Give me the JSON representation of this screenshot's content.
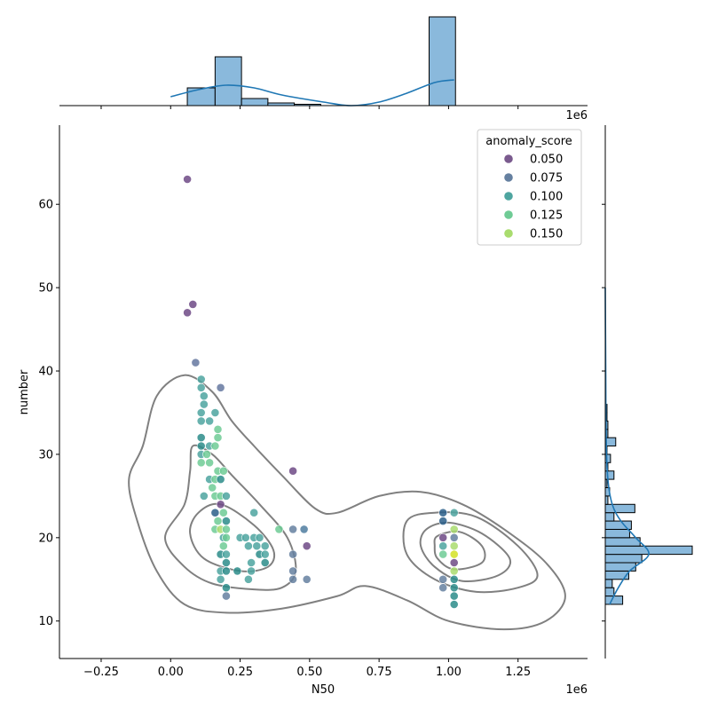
{
  "chart_data": {
    "type": "scatter",
    "subtype": "jointplot with KDE contours and marginal histograms",
    "xlabel": "N50",
    "ylabel": "number",
    "x_offset_label": "1e6",
    "top_offset_label": "1e6",
    "xlim": [
      -0.4,
      1.5
    ],
    "ylim": [
      5.5,
      69.5
    ],
    "x_unit": "millions (×1e6)",
    "x_ticks": [
      -0.25,
      0.0,
      0.25,
      0.5,
      0.75,
      1.0,
      1.25
    ],
    "x_tick_labels": [
      "−0.25",
      "0.00",
      "0.25",
      "0.50",
      "0.75",
      "1.00",
      "1.25"
    ],
    "y_ticks": [
      10,
      20,
      30,
      40,
      50,
      60
    ],
    "y_tick_labels": [
      "10",
      "20",
      "30",
      "40",
      "50",
      "60"
    ],
    "grid": false,
    "legend": {
      "title": "anomaly_score",
      "placement": "top-right",
      "entries": [
        {
          "label": "0.050",
          "color": "#7a5a8e"
        },
        {
          "label": "0.075",
          "color": "#6580a0"
        },
        {
          "label": "0.100",
          "color": "#4ea5a0"
        },
        {
          "label": "0.125",
          "color": "#6fcb95"
        },
        {
          "label": "0.150",
          "color": "#a9dc6e"
        }
      ]
    },
    "points": [
      [
        0.06,
        63,
        "#6e4a86"
      ],
      [
        0.06,
        47,
        "#6e4a86"
      ],
      [
        0.08,
        48,
        "#6e4a86"
      ],
      [
        0.09,
        41,
        "#6578a0"
      ],
      [
        0.11,
        39,
        "#4ea5a0"
      ],
      [
        0.11,
        38,
        "#4ea5a0"
      ],
      [
        0.18,
        38,
        "#6578a0"
      ],
      [
        0.12,
        37,
        "#4ea5a0"
      ],
      [
        0.12,
        36,
        "#4ea5a0"
      ],
      [
        0.11,
        35,
        "#4ea5a0"
      ],
      [
        0.16,
        35,
        "#4ea5a0"
      ],
      [
        0.11,
        34,
        "#4ea5a0"
      ],
      [
        0.14,
        34,
        "#4ea5a0"
      ],
      [
        0.17,
        33,
        "#6fcb95"
      ],
      [
        0.11,
        32,
        "#2b8c8a"
      ],
      [
        0.17,
        32,
        "#6fcb95"
      ],
      [
        0.11,
        31,
        "#2b8c8a"
      ],
      [
        0.14,
        31,
        "#4ea5a0"
      ],
      [
        0.16,
        31,
        "#6fcb95"
      ],
      [
        0.11,
        30,
        "#4ea5a0"
      ],
      [
        0.13,
        30,
        "#6fcb95"
      ],
      [
        0.11,
        29,
        "#6fcb95"
      ],
      [
        0.14,
        29,
        "#6fcb95"
      ],
      [
        0.17,
        28,
        "#6fcb95"
      ],
      [
        0.19,
        28,
        "#6fcb95"
      ],
      [
        0.44,
        28,
        "#6e4a86"
      ],
      [
        0.14,
        27,
        "#4ea5a0"
      ],
      [
        0.16,
        27,
        "#6fcb95"
      ],
      [
        0.18,
        27,
        "#2b8c8a"
      ],
      [
        0.15,
        26,
        "#6fcb95"
      ],
      [
        0.12,
        25,
        "#4ea5a0"
      ],
      [
        0.16,
        25,
        "#6fcb95"
      ],
      [
        0.18,
        25,
        "#6fcb95"
      ],
      [
        0.2,
        25,
        "#4ea5a0"
      ],
      [
        0.18,
        24,
        "#6e4a86"
      ],
      [
        0.16,
        23,
        "#2b5f8a"
      ],
      [
        0.19,
        23,
        "#6fcb95"
      ],
      [
        0.3,
        23,
        "#4ea5a0"
      ],
      [
        0.17,
        22,
        "#6fcb95"
      ],
      [
        0.2,
        22,
        "#2b8c8a"
      ],
      [
        0.16,
        21,
        "#6fcb95"
      ],
      [
        0.18,
        21,
        "#a9dc6e"
      ],
      [
        0.2,
        21,
        "#6fcb95"
      ],
      [
        0.39,
        21,
        "#6fcb95"
      ],
      [
        0.44,
        21,
        "#6580a0"
      ],
      [
        0.48,
        21,
        "#4f7ca0"
      ],
      [
        0.19,
        20,
        "#4ea5a0"
      ],
      [
        0.2,
        20,
        "#6fcb95"
      ],
      [
        0.25,
        20,
        "#4ea5a0"
      ],
      [
        0.27,
        20,
        "#4ea5a0"
      ],
      [
        0.3,
        20,
        "#4ea5a0"
      ],
      [
        0.32,
        20,
        "#4ea5a0"
      ],
      [
        0.19,
        19,
        "#6fcb95"
      ],
      [
        0.28,
        19,
        "#4ea5a0"
      ],
      [
        0.31,
        19,
        "#4ea5a0"
      ],
      [
        0.34,
        19,
        "#4ea5a0"
      ],
      [
        0.49,
        19,
        "#6e4a86"
      ],
      [
        0.18,
        18,
        "#2b8c8a"
      ],
      [
        0.2,
        18,
        "#4ea5a0"
      ],
      [
        0.32,
        18,
        "#2b8c8a"
      ],
      [
        0.34,
        18,
        "#4ea5a0"
      ],
      [
        0.44,
        18,
        "#6580a0"
      ],
      [
        0.2,
        17,
        "#2b8c8a"
      ],
      [
        0.29,
        17,
        "#4ea5a0"
      ],
      [
        0.34,
        17,
        "#2b8c8a"
      ],
      [
        0.18,
        16,
        "#4ea5a0"
      ],
      [
        0.2,
        16,
        "#2b8c8a"
      ],
      [
        0.24,
        16,
        "#2b8c8a"
      ],
      [
        0.29,
        16,
        "#4ea5a0"
      ],
      [
        0.44,
        16,
        "#6580a0"
      ],
      [
        0.18,
        15,
        "#4ea5a0"
      ],
      [
        0.28,
        15,
        "#4ea5a0"
      ],
      [
        0.44,
        15,
        "#6580a0"
      ],
      [
        0.49,
        15,
        "#6580a0"
      ],
      [
        0.2,
        14,
        "#2b8c8a"
      ],
      [
        0.2,
        13,
        "#6580a0"
      ],
      [
        0.98,
        23,
        "#2b5f8a"
      ],
      [
        1.02,
        23,
        "#4ea5a0"
      ],
      [
        0.98,
        22,
        "#2b5f8a"
      ],
      [
        1.02,
        21,
        "#a9dc6e"
      ],
      [
        0.98,
        20,
        "#6e4a86"
      ],
      [
        1.02,
        20,
        "#6580a0"
      ],
      [
        0.98,
        19,
        "#4ea5a0"
      ],
      [
        1.02,
        19,
        "#a9dc6e"
      ],
      [
        0.98,
        18,
        "#6fcb95"
      ],
      [
        1.02,
        18,
        "#d4e225"
      ],
      [
        1.02,
        17,
        "#6e4a86"
      ],
      [
        1.02,
        16,
        "#a9dc6e"
      ],
      [
        0.98,
        15,
        "#6580a0"
      ],
      [
        1.02,
        15,
        "#2b8c8a"
      ],
      [
        0.98,
        14,
        "#6580a0"
      ],
      [
        1.02,
        14,
        "#2b8c8a"
      ],
      [
        1.02,
        13,
        "#2b8c8a"
      ],
      [
        1.02,
        12,
        "#2b8c8a"
      ]
    ],
    "contours": [
      [
        [
          -0.1,
          31
        ],
        [
          -0.05,
          37
        ],
        [
          0.05,
          39.5
        ],
        [
          0.15,
          37.5
        ],
        [
          0.22,
          34
        ],
        [
          0.3,
          31
        ],
        [
          0.4,
          27.5
        ],
        [
          0.52,
          23.5
        ],
        [
          0.6,
          23
        ],
        [
          0.75,
          25
        ],
        [
          0.9,
          25.5
        ],
        [
          1.05,
          24
        ],
        [
          1.2,
          21
        ],
        [
          1.35,
          17
        ],
        [
          1.42,
          13
        ],
        [
          1.35,
          10
        ],
        [
          1.2,
          9
        ],
        [
          1.0,
          10
        ],
        [
          0.85,
          12.5
        ],
        [
          0.7,
          14.2
        ],
        [
          0.6,
          13
        ],
        [
          0.4,
          11.5
        ],
        [
          0.2,
          11
        ],
        [
          0.05,
          12
        ],
        [
          -0.05,
          16
        ],
        [
          -0.12,
          22
        ],
        [
          -0.15,
          27
        ],
        [
          -0.1,
          31
        ]
      ],
      [
        [
          0.08,
          31
        ],
        [
          0.15,
          30
        ],
        [
          0.22,
          27.5
        ],
        [
          0.32,
          24
        ],
        [
          0.42,
          20
        ],
        [
          0.45,
          16
        ],
        [
          0.4,
          14
        ],
        [
          0.3,
          13.8
        ],
        [
          0.15,
          14.5
        ],
        [
          0.05,
          16.5
        ],
        [
          -0.02,
          20
        ],
        [
          0.05,
          24
        ],
        [
          0.07,
          28
        ],
        [
          0.08,
          31
        ]
      ],
      [
        [
          0.1,
          23
        ],
        [
          0.18,
          24
        ],
        [
          0.3,
          21.5
        ],
        [
          0.37,
          18.5
        ],
        [
          0.35,
          16.5
        ],
        [
          0.25,
          16
        ],
        [
          0.12,
          17.5
        ],
        [
          0.07,
          20.5
        ],
        [
          0.1,
          23
        ]
      ],
      [
        [
          0.85,
          22
        ],
        [
          0.95,
          23
        ],
        [
          1.1,
          22.5
        ],
        [
          1.25,
          19
        ],
        [
          1.32,
          15.5
        ],
        [
          1.25,
          14
        ],
        [
          1.1,
          13.5
        ],
        [
          0.95,
          15
        ],
        [
          0.85,
          18
        ],
        [
          0.85,
          22
        ]
      ],
      [
        [
          0.92,
          21
        ],
        [
          1.0,
          21.8
        ],
        [
          1.12,
          20.5
        ],
        [
          1.22,
          17.5
        ],
        [
          1.18,
          15.5
        ],
        [
          1.05,
          14.8
        ],
        [
          0.95,
          16.5
        ],
        [
          0.9,
          19
        ],
        [
          0.92,
          21
        ]
      ],
      [
        [
          0.96,
          20.2
        ],
        [
          1.04,
          20.7
        ],
        [
          1.12,
          19
        ],
        [
          1.12,
          17
        ],
        [
          1.02,
          16.2
        ],
        [
          0.96,
          17.5
        ],
        [
          0.95,
          19
        ],
        [
          0.96,
          20.2
        ]
      ]
    ],
    "marginal_x_hist": {
      "bins": [
        [
          0.06,
          0.16,
          0.2
        ],
        [
          0.16,
          0.255,
          0.55
        ],
        [
          0.255,
          0.35,
          0.08
        ],
        [
          0.35,
          0.445,
          0.03
        ],
        [
          0.445,
          0.54,
          0.015
        ],
        [
          0.93,
          1.025,
          1.0
        ]
      ],
      "kde": [
        [
          0.0,
          0.1
        ],
        [
          0.1,
          0.18
        ],
        [
          0.2,
          0.23
        ],
        [
          0.3,
          0.2
        ],
        [
          0.4,
          0.12
        ],
        [
          0.55,
          0.04
        ],
        [
          0.65,
          0.0
        ],
        [
          0.75,
          0.04
        ],
        [
          0.85,
          0.14
        ],
        [
          0.95,
          0.26
        ],
        [
          1.02,
          0.29
        ]
      ]
    },
    "marginal_y_hist": {
      "bins": [
        [
          12,
          13,
          0.2
        ],
        [
          13,
          14,
          0.1
        ],
        [
          14,
          15,
          0.08
        ],
        [
          15,
          16,
          0.27
        ],
        [
          16,
          17,
          0.35
        ],
        [
          17,
          18,
          0.42
        ],
        [
          18,
          19,
          1.0
        ],
        [
          19,
          20,
          0.4
        ],
        [
          20,
          21,
          0.28
        ],
        [
          21,
          22,
          0.3
        ],
        [
          22,
          23,
          0.1
        ],
        [
          23,
          24,
          0.34
        ],
        [
          24,
          25,
          0.03
        ],
        [
          25,
          26,
          0.05
        ],
        [
          26,
          27,
          0.02
        ],
        [
          27,
          28,
          0.1
        ],
        [
          28,
          29,
          0.03
        ],
        [
          29,
          30,
          0.06
        ],
        [
          30,
          31,
          0.02
        ],
        [
          31,
          32,
          0.12
        ],
        [
          32,
          33,
          0.03
        ],
        [
          33,
          34,
          0.03
        ],
        [
          34,
          35,
          0.02
        ],
        [
          35,
          36,
          0.02
        ]
      ],
      "kde": [
        [
          12,
          0.05
        ],
        [
          14,
          0.15
        ],
        [
          16,
          0.28
        ],
        [
          18,
          0.5
        ],
        [
          20,
          0.35
        ],
        [
          22,
          0.18
        ],
        [
          24,
          0.08
        ],
        [
          27,
          0.03
        ],
        [
          32,
          0.01
        ],
        [
          40,
          0.005
        ],
        [
          50,
          0.0
        ]
      ]
    }
  }
}
